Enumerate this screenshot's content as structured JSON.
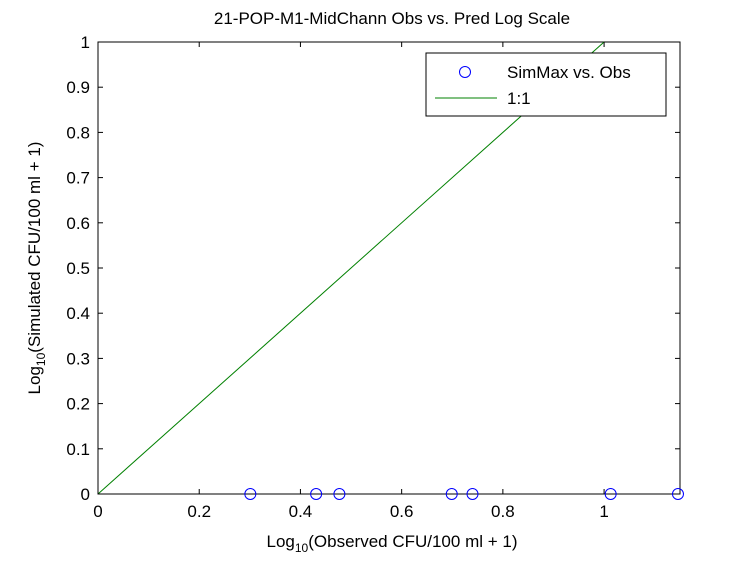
{
  "chart_data": {
    "type": "scatter",
    "title": "21-POP-M1-MidChann Obs vs. Pred Log Scale",
    "xlabel": {
      "prefix": "Log",
      "sub": "10",
      "suffix": "(Observed CFU/100 ml + 1)"
    },
    "ylabel": {
      "prefix": "Log",
      "sub": "10",
      "suffix": "(Simulated CFU/100 ml + 1)"
    },
    "xlim": [
      0,
      1.15
    ],
    "ylim": [
      0,
      1
    ],
    "xticks": [
      0,
      0.2,
      0.4,
      0.6,
      0.8,
      1
    ],
    "xtick_labels": [
      "0",
      "0.2",
      "0.4",
      "0.6",
      "0.8",
      "1"
    ],
    "yticks": [
      0,
      0.1,
      0.2,
      0.3,
      0.4,
      0.5,
      0.6,
      0.7,
      0.8,
      0.9,
      1
    ],
    "ytick_labels": [
      "0",
      "0.1",
      "0.2",
      "0.3",
      "0.4",
      "0.5",
      "0.6",
      "0.7",
      "0.8",
      "0.9",
      "1"
    ],
    "grid": false,
    "legend_position": "top-right",
    "series": [
      {
        "name": "SimMax vs. Obs",
        "marker": "circle",
        "color": "#0000ff",
        "x": [
          0.301,
          0.431,
          0.477,
          0.699,
          0.74,
          1.013,
          1.146
        ],
        "y": [
          0,
          0,
          0,
          0,
          0,
          0,
          0
        ]
      },
      {
        "name": "1:1",
        "line": true,
        "color": "#008000",
        "x": [
          0,
          1
        ],
        "y": [
          0,
          1
        ]
      }
    ]
  }
}
